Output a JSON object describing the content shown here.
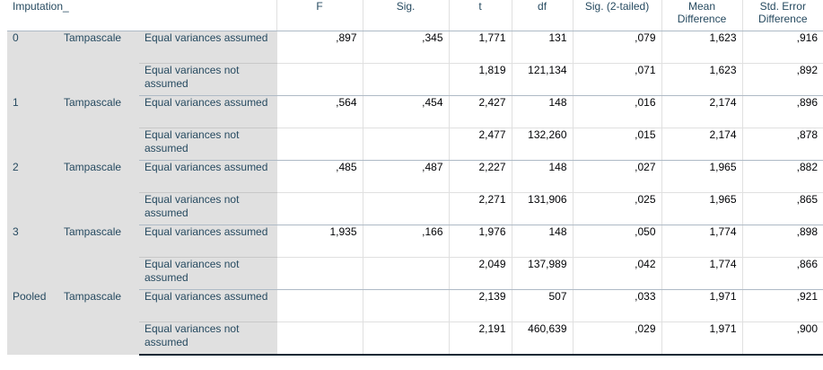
{
  "header": {
    "imputation": "Imputation_",
    "columns": [
      "F",
      "Sig.",
      "t",
      "df",
      "Sig. (2-tailed)",
      "Mean Difference",
      "Std. Error Difference"
    ]
  },
  "groups": [
    {
      "label": "0",
      "variable": "Tampascale",
      "rows": [
        {
          "assumption": "Equal variances assumed",
          "values": [
            ",897",
            ",345",
            "1,771",
            "131",
            ",079",
            "1,623",
            ",916"
          ]
        },
        {
          "assumption": "Equal variances not assumed",
          "values": [
            "",
            "",
            "1,819",
            "121,134",
            ",071",
            "1,623",
            ",892"
          ]
        }
      ]
    },
    {
      "label": "1",
      "variable": "Tampascale",
      "rows": [
        {
          "assumption": "Equal variances assumed",
          "values": [
            ",564",
            ",454",
            "2,427",
            "148",
            ",016",
            "2,174",
            ",896"
          ]
        },
        {
          "assumption": "Equal variances not assumed",
          "values": [
            "",
            "",
            "2,477",
            "132,260",
            ",015",
            "2,174",
            ",878"
          ]
        }
      ]
    },
    {
      "label": "2",
      "variable": "Tampascale",
      "rows": [
        {
          "assumption": "Equal variances assumed",
          "values": [
            ",485",
            ",487",
            "2,227",
            "148",
            ",027",
            "1,965",
            ",882"
          ]
        },
        {
          "assumption": "Equal variances not assumed",
          "values": [
            "",
            "",
            "2,271",
            "131,906",
            ",025",
            "1,965",
            ",865"
          ]
        }
      ]
    },
    {
      "label": "3",
      "variable": "Tampascale",
      "rows": [
        {
          "assumption": "Equal variances assumed",
          "values": [
            "1,935",
            ",166",
            "1,976",
            "148",
            ",050",
            "1,774",
            ",898"
          ]
        },
        {
          "assumption": "Equal variances not assumed",
          "values": [
            "",
            "",
            "2,049",
            "137,989",
            ",042",
            "1,774",
            ",866"
          ]
        }
      ]
    },
    {
      "label": "Pooled",
      "variable": "Tampascale",
      "rows": [
        {
          "assumption": "Equal variances assumed",
          "values": [
            "",
            "",
            "2,139",
            "507",
            ",033",
            "1,971",
            ",921"
          ]
        },
        {
          "assumption": "Equal variances not assumed",
          "values": [
            "",
            "",
            "2,191",
            "460,639",
            ",029",
            "1,971",
            ",900"
          ]
        }
      ]
    }
  ],
  "colors": {
    "label_text": "#264a60",
    "label_background": "#e0e0e0",
    "value_text": "#010205",
    "border_strong": "#152935"
  }
}
